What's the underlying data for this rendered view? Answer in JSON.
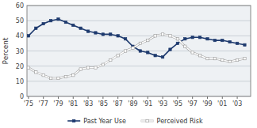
{
  "chart_data": {
    "type": "line",
    "x": [
      1975,
      1976,
      1977,
      1978,
      1979,
      1980,
      1981,
      1982,
      1983,
      1984,
      1985,
      1986,
      1987,
      1988,
      1989,
      1990,
      1991,
      1992,
      1993,
      1994,
      1995,
      1996,
      1997,
      1998,
      1999,
      2000,
      2001,
      2002,
      2003,
      2004
    ],
    "series": [
      {
        "name": "Past Year Use",
        "color": "#1e3a6e",
        "marker": "square",
        "values": [
          40,
          45,
          48,
          50,
          51,
          49,
          47,
          45,
          43,
          42,
          41,
          41,
          40,
          38,
          33,
          30,
          29,
          27,
          26,
          31,
          35,
          38,
          39,
          39,
          38,
          37,
          37,
          36,
          35,
          34
        ]
      },
      {
        "name": "Perceived Risk",
        "color": "#ffffff",
        "marker": "square",
        "values": [
          19,
          16,
          14,
          12,
          12,
          13,
          14,
          18,
          19,
          19,
          21,
          24,
          27,
          30,
          32,
          35,
          37,
          40,
          41,
          40,
          38,
          33,
          29,
          27,
          25,
          25,
          24,
          23,
          24,
          25
        ]
      }
    ],
    "ylabel": "Percent",
    "xlim": [
      1974.8,
      2004.8
    ],
    "xticks": [
      {
        "value": 1975,
        "label": "'75"
      },
      {
        "value": 1977,
        "label": "'77"
      },
      {
        "value": 1979,
        "label": "'79"
      },
      {
        "value": 1981,
        "label": "'81"
      },
      {
        "value": 1983,
        "label": "'83"
      },
      {
        "value": 1985,
        "label": "'85"
      },
      {
        "value": 1987,
        "label": "'87"
      },
      {
        "value": 1989,
        "label": "'89"
      },
      {
        "value": 1991,
        "label": "'91"
      },
      {
        "value": 1993,
        "label": "'93"
      },
      {
        "value": 1995,
        "label": "'95"
      },
      {
        "value": 1997,
        "label": "'97"
      },
      {
        "value": 1999,
        "label": "'99"
      },
      {
        "value": 2001,
        "label": "'01"
      },
      {
        "value": 2003,
        "label": "'03"
      }
    ],
    "ylim": [
      0,
      60
    ],
    "yticks": [
      0,
      10,
      20,
      30,
      40,
      50,
      60
    ],
    "grid": true,
    "legend": "bottom"
  }
}
